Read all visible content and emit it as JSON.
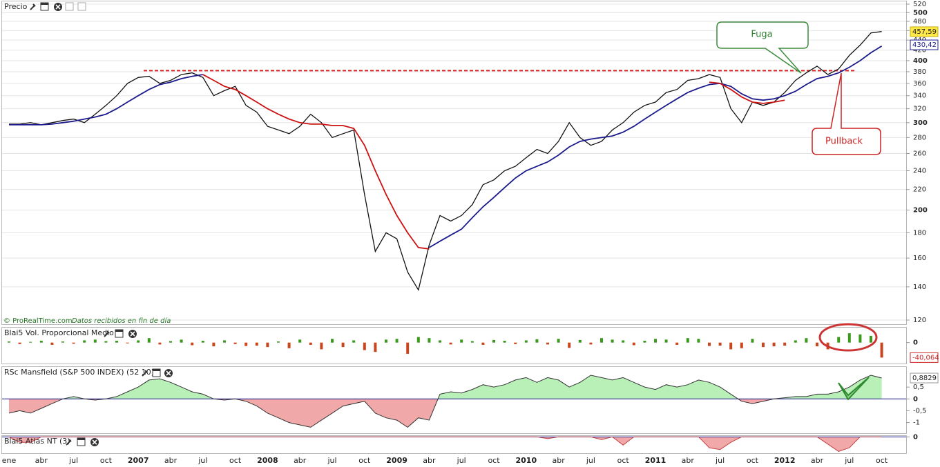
{
  "chart_data": [
    {
      "type": "candlestick-line",
      "title": "Precio",
      "source": "© ProRealTime.com",
      "note": "Datos recibidos en fin de día",
      "annotations": [
        "Fuga",
        "Pullback"
      ],
      "categories": [
        "ene",
        null,
        null,
        "abr",
        null,
        null,
        "jul",
        null,
        null,
        "oct",
        null,
        null,
        "2007",
        null,
        null,
        "abr",
        null,
        null,
        "jul",
        null,
        null,
        "oct",
        null,
        null,
        "2008",
        null,
        null,
        "abr",
        null,
        null,
        "jul",
        null,
        null,
        "oct",
        null,
        null,
        "2009",
        null,
        null,
        "abr",
        null,
        null,
        "jul",
        null,
        null,
        "oct",
        null,
        null,
        "2010",
        null,
        null,
        "abr",
        null,
        null,
        "jul",
        null,
        null,
        "oct",
        null,
        null,
        "2011",
        null,
        null,
        "abr",
        null,
        null,
        "jul",
        null,
        null,
        "oct",
        null,
        null,
        "2012",
        null,
        null,
        "abr",
        null,
        null,
        "jul",
        null,
        null,
        "oct"
      ],
      "series": [
        {
          "color": "#111111",
          "values": [
            298,
            298,
            300,
            297,
            300,
            303,
            305,
            300,
            312,
            325,
            340,
            360,
            370,
            372,
            360,
            365,
            375,
            378,
            370,
            340,
            348,
            355,
            325,
            315,
            295,
            290,
            285,
            295,
            312,
            300,
            280,
            285,
            290,
            215,
            165,
            180,
            175,
            150,
            138,
            170,
            195,
            190,
            195,
            205,
            225,
            230,
            240,
            245,
            255,
            265,
            260,
            275,
            300,
            280,
            270,
            275,
            290,
            300,
            315,
            325,
            330,
            345,
            350,
            365,
            368,
            375,
            370,
            320,
            300,
            330,
            325,
            330,
            345,
            365,
            378,
            390,
            375,
            385,
            410,
            430,
            455,
            458
          ]
        },
        {
          "color": "#1a1a8c",
          "values": [
            297,
            297,
            297,
            297,
            298,
            300,
            302,
            305,
            308,
            312,
            320,
            330,
            340,
            350,
            358,
            362,
            368,
            372,
            375,
            null,
            null,
            null,
            null,
            null,
            null,
            null,
            null,
            null,
            null,
            null,
            null,
            null,
            null,
            null,
            null,
            null,
            null,
            null,
            null,
            168,
            173,
            178,
            183,
            193,
            203,
            212,
            222,
            232,
            240,
            245,
            250,
            258,
            268,
            275,
            278,
            280,
            282,
            287,
            295,
            305,
            315,
            325,
            335,
            345,
            352,
            358,
            360,
            355,
            343,
            335,
            333,
            335,
            340,
            347,
            358,
            368,
            372,
            378,
            388,
            400,
            415,
            428
          ]
        },
        {
          "color": "#cc1111",
          "values": [
            null,
            null,
            null,
            null,
            null,
            null,
            null,
            null,
            null,
            null,
            null,
            null,
            null,
            null,
            null,
            null,
            null,
            null,
            375,
            365,
            355,
            350,
            340,
            330,
            320,
            312,
            305,
            300,
            298,
            298,
            296,
            296,
            292,
            270,
            240,
            215,
            195,
            180,
            168,
            167,
            null,
            null,
            null,
            null,
            null,
            null,
            null,
            null,
            null,
            null,
            null,
            null,
            null,
            null,
            null,
            null,
            null,
            null,
            null,
            null,
            null,
            null,
            null,
            null,
            null,
            362,
            360,
            350,
            338,
            330,
            328,
            330,
            333,
            null,
            null,
            null,
            null,
            null,
            null,
            null,
            null,
            null
          ]
        }
      ],
      "resistance": 382,
      "resistance_color": "#e02020",
      "last_values": [
        {
          "value": 457.59,
          "label": "457,59"
        },
        {
          "value": 430.42,
          "label": "430,42"
        }
      ],
      "log_scale": true,
      "ylim": [
        120,
        520
      ],
      "yticks": [
        120,
        140,
        160,
        180,
        200,
        220,
        240,
        260,
        280,
        300,
        320,
        340,
        360,
        380,
        400,
        420,
        440,
        460,
        480,
        500,
        520
      ],
      "grid": true
    },
    {
      "type": "bar",
      "title": "Blai5 Vol. Proporcional Medio",
      "up_color": "#3a9a1a",
      "down_color": "#c8461e",
      "values": [
        3,
        -4,
        2,
        5,
        -6,
        3,
        -3,
        6,
        8,
        4,
        5,
        -2,
        6,
        12,
        -5,
        4,
        8,
        -7,
        5,
        -10,
        6,
        -4,
        -9,
        -8,
        -12,
        3,
        -15,
        8,
        -6,
        -18,
        10,
        -12,
        6,
        -20,
        -25,
        8,
        10,
        -30,
        15,
        12,
        6,
        -5,
        8,
        4,
        -6,
        7,
        5,
        -4,
        6,
        9,
        -5,
        10,
        -14,
        7,
        -5,
        12,
        8,
        6,
        -7,
        5,
        10,
        8,
        -6,
        12,
        10,
        -9,
        -8,
        -18,
        -15,
        10,
        -12,
        -10,
        -8,
        6,
        12,
        -10,
        -18,
        15,
        25,
        22,
        18,
        -40.064
      ],
      "last_value": {
        "value": -40.064,
        "label": "-40,064"
      },
      "ylim": [
        -56,
        40
      ],
      "yticks": [
        0
      ]
    },
    {
      "type": "area",
      "title": "RSc Mansfield (S&P 500 INDEX) (52 10)",
      "up_color": "#b8f0b8",
      "down_color": "#f0a8a8",
      "line_color": "#333333",
      "values": [
        -0.6,
        -0.5,
        -0.6,
        -0.4,
        -0.2,
        0,
        0.1,
        0,
        -0.05,
        0,
        0.1,
        0.3,
        0.5,
        0.8,
        0.85,
        0.7,
        0.5,
        0.3,
        0.2,
        0,
        -0.05,
        0,
        -0.1,
        -0.3,
        -0.6,
        -0.8,
        -1.0,
        -1.1,
        -1.2,
        -0.9,
        -0.6,
        -0.3,
        -0.2,
        -0.1,
        -0.6,
        -0.8,
        -0.9,
        -1.2,
        -0.8,
        -0.9,
        0.2,
        0.3,
        0.25,
        0.4,
        0.6,
        0.5,
        0.6,
        0.8,
        0.9,
        0.7,
        0.9,
        0.8,
        0.5,
        0.7,
        1.0,
        0.9,
        0.8,
        0.9,
        0.7,
        0.5,
        0.4,
        0.6,
        0.5,
        0.6,
        0.8,
        0.7,
        0.5,
        0.2,
        -0.1,
        -0.2,
        -0.1,
        0,
        0.05,
        0.1,
        0.1,
        0.2,
        0.2,
        0.3,
        0.5,
        0.8,
        1.0,
        0.8829
      ],
      "last_value": {
        "value": 0.8829,
        "label": "0,8829"
      },
      "ylim": [
        -1.45,
        1.35
      ],
      "yticks": [
        {
          "value": 0.5,
          "label": "0,5"
        },
        0,
        {
          "value": -0.5,
          "label": "-0,5"
        },
        -1
      ]
    },
    {
      "type": "area",
      "title": "Blai5 Atlas NT (3)",
      "up_color": "#b8f0b8",
      "down_color": "#f0a8a8",
      "line_color": "#c44444",
      "values": [
        0,
        -0.6,
        -0.6,
        0,
        0,
        0,
        0,
        0,
        0,
        0,
        0,
        0,
        0,
        0,
        0,
        0,
        0,
        0,
        0,
        0,
        0,
        0,
        0,
        0,
        0,
        0,
        0,
        0,
        0,
        0,
        0,
        0,
        0,
        0,
        0,
        0,
        0,
        0,
        0,
        0,
        0,
        0,
        0,
        0,
        0,
        0,
        0,
        0,
        0,
        0,
        -0.2,
        0,
        0,
        0,
        0,
        -0.3,
        0,
        -0.9,
        0,
        0,
        0,
        0,
        0,
        0,
        0,
        -1.2,
        -1.4,
        -0.6,
        0,
        0,
        0,
        0,
        0,
        0,
        0,
        0,
        -0.8,
        -1.6,
        -1.2,
        0,
        0,
        0
      ],
      "ylim": [
        -1.8,
        0.1
      ],
      "yticks": [
        0
      ]
    }
  ]
}
